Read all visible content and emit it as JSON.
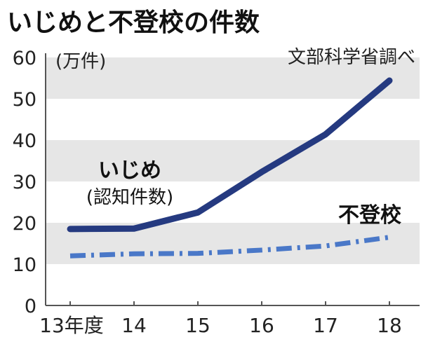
{
  "chart_data": {
    "type": "line",
    "title": "いじめと不登校の件数",
    "unit_label": "(万件)",
    "source": "文部科学省調べ",
    "categories": [
      "13年度",
      "14",
      "15",
      "16",
      "17",
      "18"
    ],
    "ylim": [
      0,
      60
    ],
    "yticks": [
      "0",
      "10",
      "20",
      "30",
      "40",
      "50",
      "60"
    ],
    "grid": "alternating horizontal bands",
    "series": [
      {
        "name": "いじめ",
        "sublabel": "(認知件数)",
        "values": [
          18.5,
          18.6,
          22.5,
          32.3,
          41.4,
          54.4
        ],
        "color": "#253a80",
        "style": "solid"
      },
      {
        "name": "不登校",
        "values": [
          12.0,
          12.5,
          12.6,
          13.4,
          14.4,
          16.5
        ],
        "color": "#4a78c8",
        "style": "dash-dot"
      }
    ]
  }
}
